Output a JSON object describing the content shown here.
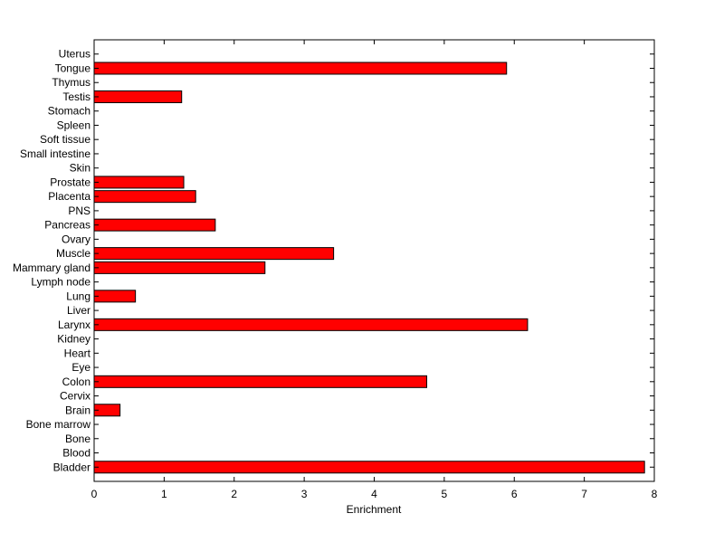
{
  "chart_data": {
    "type": "bar",
    "orientation": "horizontal",
    "xlabel": "Enrichment",
    "ylabel": "",
    "title": "",
    "xlim": [
      0,
      8
    ],
    "xticks": [
      0,
      1,
      2,
      3,
      4,
      5,
      6,
      7,
      8
    ],
    "grid": false,
    "bar_color": "#ff0000",
    "categories": [
      "Bladder",
      "Blood",
      "Bone",
      "Bone marrow",
      "Brain",
      "Cervix",
      "Colon",
      "Eye",
      "Heart",
      "Kidney",
      "Larynx",
      "Liver",
      "Lung",
      "Lymph node",
      "Mammary gland",
      "Muscle",
      "Ovary",
      "Pancreas",
      "PNS",
      "Placenta",
      "Prostate",
      "Skin",
      "Small intestine",
      "Soft tissue",
      "Spleen",
      "Stomach",
      "Testis",
      "Thymus",
      "Tongue",
      "Uterus"
    ],
    "values": [
      7.86,
      0,
      0,
      0,
      0.37,
      0,
      4.75,
      0,
      0,
      0,
      6.19,
      0,
      0.59,
      0,
      2.44,
      3.42,
      0,
      1.73,
      0,
      1.45,
      1.28,
      0,
      0,
      0,
      0,
      0,
      1.25,
      0,
      5.89,
      0
    ]
  }
}
